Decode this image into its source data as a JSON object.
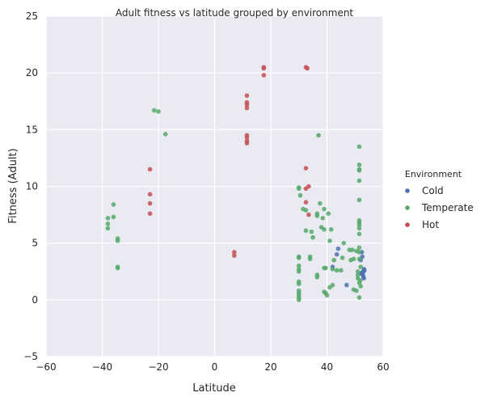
{
  "chart_data": {
    "type": "scatter",
    "title": "Adult fitness vs latitude grouped by environment",
    "xlabel": "Latitude",
    "ylabel": "Fitness (Adult)",
    "xlim": [
      -60,
      60
    ],
    "ylim": [
      -5,
      25
    ],
    "xticks": [
      "−60",
      "−40",
      "−20",
      "0",
      "20",
      "40",
      "60"
    ],
    "xtick_values": [
      -60,
      -40,
      -20,
      0,
      20,
      40,
      60
    ],
    "yticks": [
      "−5",
      "0",
      "5",
      "10",
      "15",
      "20",
      "25"
    ],
    "ytick_values": [
      -5,
      0,
      5,
      10,
      15,
      20,
      25
    ],
    "grid": true,
    "background": "#eaeaf2",
    "legend": {
      "title": "Environment",
      "placement": "right"
    },
    "series": [
      {
        "name": "Cold",
        "color": "#4c72b0",
        "points": [
          [
            52.5,
            2.4
          ],
          [
            53,
            2.0
          ],
          [
            53.2,
            2.7
          ],
          [
            52.8,
            2.2
          ],
          [
            53.1,
            1.9
          ],
          [
            52.6,
            3.8
          ],
          [
            52.4,
            4.2
          ],
          [
            53.0,
            2.5
          ],
          [
            52.2,
            2.3
          ],
          [
            53.3,
            2.6
          ],
          [
            47,
            1.3
          ],
          [
            44,
            4.5
          ],
          [
            42,
            2.9
          ],
          [
            43.5,
            4.0
          ],
          [
            52.0,
            3.5
          ]
        ]
      },
      {
        "name": "Temperate",
        "color": "#55a868",
        "points": [
          [
            -38,
            7.2
          ],
          [
            -38,
            6.7
          ],
          [
            -38,
            6.3
          ],
          [
            -36,
            8.4
          ],
          [
            -36,
            7.3
          ],
          [
            -34.5,
            5.4
          ],
          [
            -34.5,
            5.2
          ],
          [
            -34.5,
            2.9
          ],
          [
            -34.5,
            2.8
          ],
          [
            -21.5,
            16.7
          ],
          [
            -20,
            16.6
          ],
          [
            -17.5,
            14.6
          ],
          [
            30,
            9.9
          ],
          [
            30,
            9.8
          ],
          [
            30.5,
            9.2
          ],
          [
            31.5,
            8.0
          ],
          [
            32.5,
            7.9
          ],
          [
            30,
            3.8
          ],
          [
            30,
            3.7
          ],
          [
            30,
            3.0
          ],
          [
            30,
            2.7
          ],
          [
            30,
            2.5
          ],
          [
            30,
            1.6
          ],
          [
            30,
            1.4
          ],
          [
            30,
            0.8
          ],
          [
            30,
            0.6
          ],
          [
            30,
            0.4
          ],
          [
            30,
            0.2
          ],
          [
            30,
            0.0
          ],
          [
            32.5,
            6.1
          ],
          [
            34.5,
            6.0
          ],
          [
            35,
            5.5
          ],
          [
            34,
            3.8
          ],
          [
            34,
            3.6
          ],
          [
            36.5,
            7.6
          ],
          [
            36.5,
            7.4
          ],
          [
            37.5,
            8.5
          ],
          [
            38.5,
            7.2
          ],
          [
            39,
            8.0
          ],
          [
            38,
            6.4
          ],
          [
            39,
            6.2
          ],
          [
            40.5,
            7.6
          ],
          [
            41.5,
            6.2
          ],
          [
            41,
            5.2
          ],
          [
            37,
            14.5
          ],
          [
            36.5,
            2.2
          ],
          [
            36.5,
            2.0
          ],
          [
            39,
            2.8
          ],
          [
            39.5,
            2.8
          ],
          [
            39,
            0.7
          ],
          [
            39.5,
            0.6
          ],
          [
            40,
            0.4
          ],
          [
            41,
            1.1
          ],
          [
            42,
            1.3
          ],
          [
            42,
            2.7
          ],
          [
            42.5,
            3.5
          ],
          [
            45,
            2.6
          ],
          [
            43.5,
            2.6
          ],
          [
            45.5,
            3.7
          ],
          [
            46,
            5.0
          ],
          [
            48,
            4.4
          ],
          [
            49,
            4.4
          ],
          [
            48.5,
            3.5
          ],
          [
            49.5,
            3.6
          ],
          [
            50.5,
            4.3
          ],
          [
            49.5,
            0.9
          ],
          [
            50.5,
            0.8
          ],
          [
            51.5,
            13.5
          ],
          [
            51.5,
            11.9
          ],
          [
            51.5,
            11.5
          ],
          [
            51.5,
            11.4
          ],
          [
            51.5,
            10.5
          ],
          [
            51.5,
            8.8
          ],
          [
            51.5,
            7.0
          ],
          [
            51.5,
            6.8
          ],
          [
            51.5,
            6.6
          ],
          [
            51.5,
            6.3
          ],
          [
            51.5,
            5.8
          ],
          [
            51.5,
            4.6
          ],
          [
            51.5,
            4.2
          ],
          [
            51.5,
            3.6
          ],
          [
            51,
            2.5
          ],
          [
            51,
            1.9
          ],
          [
            51.5,
            1.5
          ],
          [
            52,
            1.2
          ],
          [
            51.5,
            0.2
          ],
          [
            52,
            2.9
          ],
          [
            51,
            2.2
          ],
          [
            51.8,
            1.7
          ]
        ]
      },
      {
        "name": "Hot",
        "color": "#c44e52",
        "points": [
          [
            -23,
            11.5
          ],
          [
            -23,
            9.3
          ],
          [
            -23,
            8.5
          ],
          [
            -23,
            7.6
          ],
          [
            7,
            4.2
          ],
          [
            7,
            3.9
          ],
          [
            11.5,
            18.0
          ],
          [
            11.5,
            17.4
          ],
          [
            11.5,
            17.2
          ],
          [
            11.5,
            16.9
          ],
          [
            11.5,
            14.5
          ],
          [
            11.5,
            14.3
          ],
          [
            11.5,
            14.0
          ],
          [
            11.5,
            13.8
          ],
          [
            17.5,
            20.5
          ],
          [
            17.5,
            20.4
          ],
          [
            17.5,
            19.8
          ],
          [
            32.5,
            20.5
          ],
          [
            33,
            20.4
          ],
          [
            32.5,
            11.6
          ],
          [
            32.5,
            9.8
          ],
          [
            33.5,
            10.0
          ],
          [
            32.5,
            8.6
          ],
          [
            33.5,
            7.5
          ]
        ]
      }
    ]
  }
}
